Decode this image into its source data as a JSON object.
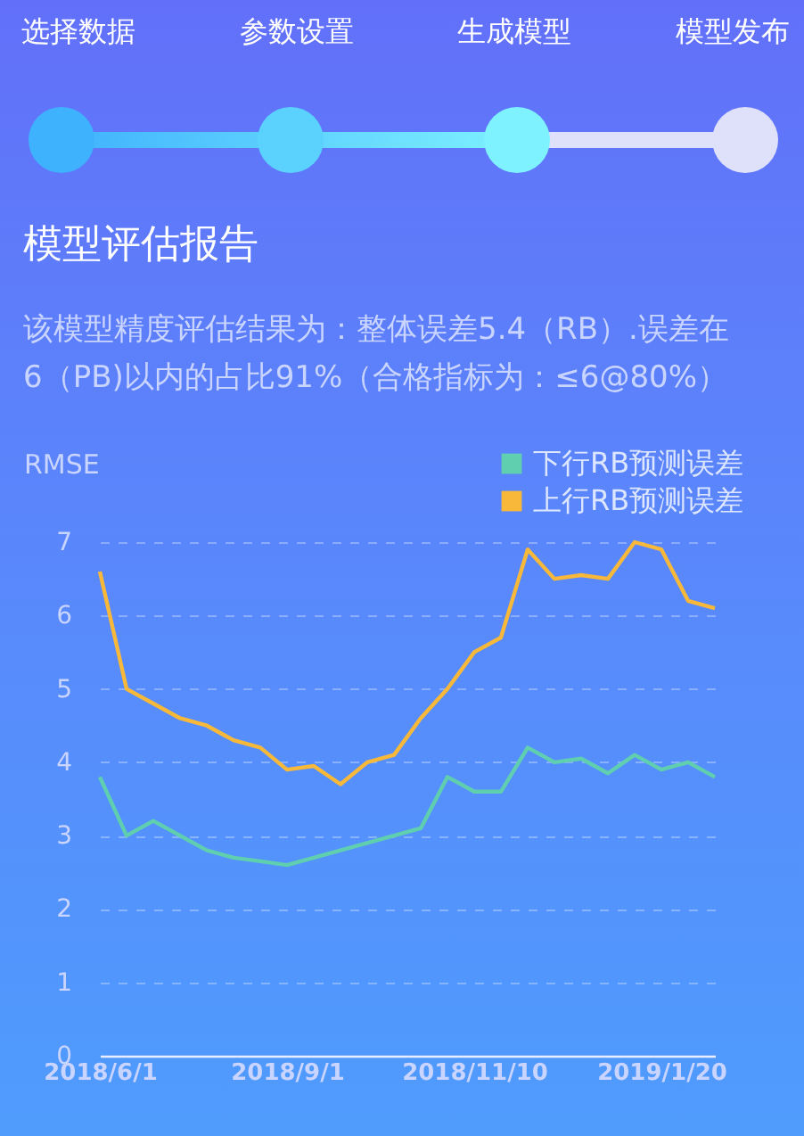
{
  "chart_data": {
    "type": "line",
    "title": "模型评估报告",
    "subtitle": "该模型精度评估结果为：整体误差5.4（RB）.误差在6（PB)以内的占比91%（合格指标为：≤6@80%）",
    "annotations": [
      "选择数据",
      "参数设置",
      "生成模型",
      "模型发布"
    ],
    "ylabel": "RMSE",
    "categories": [
      "2018/6/1",
      null,
      null,
      null,
      null,
      null,
      null,
      "2018/9/1",
      null,
      null,
      null,
      null,
      null,
      null,
      "2018/11/10",
      null,
      null,
      null,
      null,
      null,
      null,
      "2019/1/20",
      null,
      null
    ],
    "series": [
      {
        "name": "下行RB预测误差",
        "color": "#5fcfb0",
        "values": [
          3.8,
          3.0,
          3.2,
          3.0,
          2.8,
          2.7,
          2.65,
          2.6,
          2.7,
          2.8,
          2.9,
          3.0,
          3.1,
          3.8,
          3.6,
          3.6,
          4.2,
          4.0,
          4.05,
          3.85,
          4.1,
          3.9,
          4.0,
          3.8
        ]
      },
      {
        "name": "上行RB预测误差",
        "color": "#f8b93a",
        "values": [
          6.6,
          5.0,
          4.8,
          4.6,
          4.5,
          4.3,
          4.2,
          3.9,
          3.95,
          3.7,
          4.0,
          4.1,
          4.6,
          5.0,
          5.5,
          5.7,
          6.9,
          6.5,
          6.55,
          6.5,
          7.0,
          6.9,
          6.2,
          6.1
        ]
      }
    ],
    "ylim": [
      0,
      7
    ],
    "yticks": [
      0,
      1,
      2,
      3,
      4,
      5,
      6,
      7
    ],
    "grid": "y",
    "legend": "top right",
    "marker": "none",
    "line_style": "solid"
  }
}
